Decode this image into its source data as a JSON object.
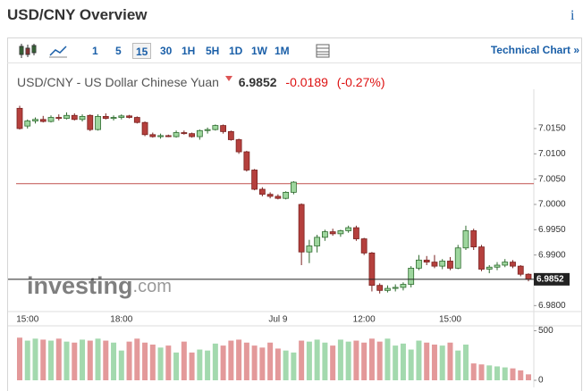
{
  "header": {
    "title": "USD/CNY Overview",
    "info": "i"
  },
  "toolbar": {
    "intervals": [
      "1",
      "5",
      "15",
      "30",
      "1H",
      "5H",
      "1D",
      "1W",
      "1M"
    ],
    "selected": "15",
    "link": "Technical Chart »"
  },
  "quote": {
    "name": "USD/CNY - US Dollar Chinese Yuan",
    "price": "6.9852",
    "change": "-0.0189",
    "change_percent": "(-0.27%)"
  },
  "watermark": {
    "brand": "investing",
    "suffix": ".com"
  },
  "chart_data": [
    {
      "type": "candlestick",
      "categories": [
        null,
        "15:00",
        null,
        null,
        null,
        null,
        null,
        null,
        null,
        null,
        null,
        null,
        null,
        "18:00",
        null,
        null,
        null,
        null,
        null,
        null,
        null,
        null,
        null,
        null,
        null,
        null,
        null,
        null,
        null,
        null,
        null,
        null,
        null,
        "Jul 9",
        null,
        null,
        null,
        null,
        null,
        null,
        null,
        null,
        null,
        null,
        "12:00",
        null,
        null,
        null,
        null,
        null,
        null,
        null,
        null,
        null,
        null,
        "15:00",
        null,
        null,
        null,
        null,
        null,
        null,
        null,
        null,
        null,
        null
      ],
      "open": [
        7.019,
        7.0155,
        7.0165,
        7.0168,
        7.0164,
        7.0172,
        7.017,
        7.0176,
        7.0168,
        7.0176,
        7.0148,
        7.0174,
        7.017,
        7.0172,
        7.0175,
        7.0172,
        7.0162,
        7.0138,
        7.0134,
        7.0136,
        7.0134,
        7.0142,
        7.014,
        7.0134,
        7.0146,
        7.0148,
        7.0156,
        7.0144,
        7.0128,
        7.0104,
        7.0068,
        7.003,
        7.002,
        7.0016,
        7.0012,
        7.0024,
        7.0,
        6.9906,
        6.9918,
        6.9935,
        6.9946,
        6.9942,
        6.9948,
        6.9954,
        6.9932,
        6.9904,
        6.984,
        6.983,
        6.9834,
        6.9836,
        6.9842,
        6.9874,
        6.989,
        6.9886,
        6.9878,
        6.9888,
        6.9874,
        6.9914,
        6.9948,
        6.9916,
        6.9872,
        6.9876,
        6.988,
        6.9886,
        6.9878,
        6.9862
      ],
      "high": [
        7.0195,
        7.0168,
        7.0172,
        7.0175,
        7.0176,
        7.0178,
        7.0182,
        7.018,
        7.0178,
        7.0178,
        7.0178,
        7.018,
        7.0176,
        7.0178,
        7.0177,
        7.0174,
        7.0164,
        7.0142,
        7.014,
        7.0138,
        7.0146,
        7.0146,
        7.0142,
        7.0148,
        7.0152,
        7.0158,
        7.0158,
        7.0146,
        7.013,
        7.0106,
        7.007,
        7.0034,
        7.0024,
        7.002,
        7.0026,
        7.0046,
        7.0002,
        6.993,
        6.994,
        6.995,
        6.9952,
        6.995,
        6.9958,
        6.9958,
        6.9934,
        6.9906,
        6.9844,
        6.984,
        6.9842,
        6.9846,
        6.9878,
        6.99,
        6.9898,
        6.99,
        6.9892,
        6.9896,
        6.992,
        6.9958,
        6.9952,
        6.992,
        6.988,
        6.9886,
        6.9892,
        6.989,
        6.988,
        6.9864
      ],
      "low": [
        7.0148,
        7.015,
        7.016,
        7.0162,
        7.0162,
        7.0166,
        7.0168,
        7.0166,
        7.0164,
        7.0145,
        7.0146,
        7.0168,
        7.0166,
        7.0168,
        7.017,
        7.016,
        7.0135,
        7.0132,
        7.013,
        7.0133,
        7.0132,
        7.0138,
        7.0132,
        7.0128,
        7.014,
        7.0146,
        7.014,
        7.0126,
        7.01,
        7.0065,
        7.0028,
        7.0016,
        7.0012,
        7.001,
        7.001,
        7.002,
        6.988,
        6.9884,
        6.9905,
        6.9928,
        6.9938,
        6.9936,
        6.9944,
        6.9928,
        6.99,
        6.9828,
        6.9824,
        6.9826,
        6.9828,
        6.983,
        6.9836,
        6.987,
        6.988,
        6.9874,
        6.9872,
        6.987,
        6.9872,
        6.991,
        6.991,
        6.9868,
        6.9864,
        6.987,
        6.9876,
        6.9874,
        6.9858,
        6.9848
      ],
      "close": [
        7.015,
        7.0165,
        7.0168,
        7.0164,
        7.0172,
        7.017,
        7.0176,
        7.0168,
        7.0174,
        7.0148,
        7.0174,
        7.017,
        7.0172,
        7.0175,
        7.0172,
        7.0162,
        7.0138,
        7.0134,
        7.0136,
        7.0134,
        7.0142,
        7.014,
        7.0134,
        7.0146,
        7.0148,
        7.0156,
        7.0144,
        7.0128,
        7.0104,
        7.0068,
        7.003,
        7.002,
        7.0016,
        7.0012,
        7.0024,
        7.0044,
        6.9906,
        6.9918,
        6.9935,
        6.9946,
        6.9942,
        6.9948,
        6.9954,
        6.9932,
        6.9904,
        6.984,
        6.983,
        6.9834,
        6.9836,
        6.9842,
        6.9874,
        6.989,
        6.9886,
        6.9878,
        6.9888,
        6.9874,
        6.9914,
        6.9948,
        6.9916,
        6.9872,
        6.9876,
        6.988,
        6.9886,
        6.9878,
        6.9862,
        6.9852
      ],
      "ylim": [
        6.979,
        7.021
      ],
      "yticks": [
        {
          "value": 7.015,
          "label": "7.0150"
        },
        {
          "value": 7.01,
          "label": "7.0100"
        },
        {
          "value": 7.005,
          "label": "7.0050"
        },
        {
          "value": 7.0,
          "label": "7.0000"
        },
        {
          "value": 6.995,
          "label": "6.9950"
        },
        {
          "value": 6.99,
          "label": "6.9900"
        },
        {
          "value": 6.98,
          "label": "6.9800"
        }
      ],
      "reference_lines": [
        {
          "value": 7.0041,
          "color": "#c0504d"
        }
      ],
      "last_price": 6.9852,
      "up_color": "#9ed69e",
      "up_border": "#2e6b2e",
      "down_color": "#b5403d",
      "down_border": "#7a2220"
    },
    {
      "type": "bar",
      "values": [
        430,
        400,
        420,
        410,
        400,
        420,
        390,
        380,
        410,
        400,
        420,
        400,
        380,
        300,
        390,
        420,
        380,
        360,
        330,
        350,
        280,
        390,
        280,
        310,
        300,
        370,
        350,
        400,
        410,
        380,
        350,
        330,
        380,
        320,
        300,
        280,
        400,
        390,
        410,
        380,
        350,
        410,
        390,
        400,
        380,
        420,
        390,
        420,
        350,
        370,
        310,
        400,
        380,
        360,
        350,
        380,
        300,
        360,
        170,
        160,
        150,
        140,
        130,
        120,
        100,
        60
      ],
      "ylim": [
        0,
        540
      ],
      "yticks": [
        0,
        500
      ],
      "up_color": "#a3d9ae",
      "down_color": "#e3999a"
    }
  ]
}
